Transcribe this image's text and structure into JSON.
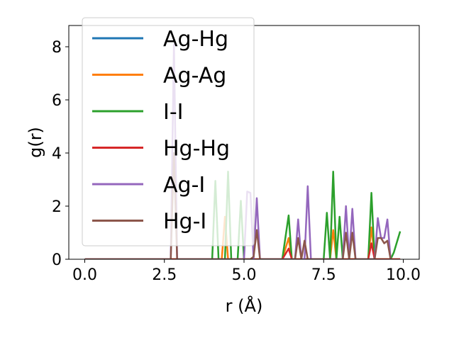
{
  "chart_data": {
    "type": "line",
    "title": "",
    "xlabel": "r (Å)",
    "ylabel": "g(r)",
    "xlim": [
      -0.5,
      10.5
    ],
    "ylim": [
      0,
      8.8
    ],
    "xticks": [
      0.0,
      2.5,
      5.0,
      7.5,
      10.0
    ],
    "xtick_labels": [
      "0.0",
      "2.5",
      "5.0",
      "7.5",
      "10.0"
    ],
    "yticks": [
      0,
      2,
      4,
      6,
      8
    ],
    "ytick_labels": [
      "0",
      "2",
      "4",
      "6",
      "8"
    ],
    "grid": false,
    "legend_position": "upper-left",
    "series": [
      {
        "name": "Ag-Hg",
        "color": "#1f77b4",
        "x": [
          0,
          9.9
        ],
        "y": [
          0,
          0
        ]
      },
      {
        "name": "Ag-Ag",
        "color": "#ff7f0e",
        "x": [
          0,
          4.3,
          4.4,
          4.5,
          4.6,
          6.2,
          6.4,
          6.5,
          7.7,
          7.8,
          7.9,
          8.9,
          9.0,
          9.1,
          9.9
        ],
        "y": [
          0,
          0,
          1.6,
          0,
          0,
          0,
          0.8,
          0,
          0,
          1.1,
          0,
          0,
          1.2,
          0,
          0
        ]
      },
      {
        "name": "I-I",
        "color": "#2ca02c",
        "x": [
          0,
          4.0,
          4.1,
          4.2,
          4.4,
          4.5,
          4.6,
          4.8,
          4.9,
          5.0,
          6.2,
          6.4,
          6.5,
          7.5,
          7.6,
          7.7,
          7.8,
          7.9,
          8.0,
          8.1,
          8.9,
          9.0,
          9.1,
          9.6,
          9.7,
          9.9
        ],
        "y": [
          0,
          0,
          2.95,
          0,
          0,
          3.3,
          0,
          0,
          2.2,
          0,
          0,
          1.65,
          0,
          0,
          1.75,
          0,
          3.3,
          0,
          1.6,
          0,
          0,
          2.5,
          0,
          0,
          0.25,
          1.05
        ]
      },
      {
        "name": "Hg-Hg",
        "color": "#d62728",
        "x": [
          0,
          6.2,
          6.4,
          6.5,
          8.9,
          9.0,
          9.1,
          9.9
        ],
        "y": [
          0,
          0,
          0.4,
          0,
          0,
          0.6,
          0,
          0
        ]
      },
      {
        "name": "Ag-I",
        "color": "#9467bd",
        "x": [
          0,
          2.7,
          2.8,
          2.9,
          5.0,
          5.1,
          5.2,
          5.3,
          5.4,
          5.5,
          6.5,
          6.6,
          6.7,
          6.8,
          6.9,
          7.0,
          7.1,
          8.0,
          8.1,
          8.2,
          8.3,
          8.4,
          8.5,
          9.1,
          9.2,
          9.3,
          9.4,
          9.5,
          9.6
        ],
        "y": [
          0,
          0,
          8.1,
          0,
          0,
          2.55,
          2.5,
          0,
          2.3,
          0,
          0,
          0,
          1.5,
          0,
          0,
          2.75,
          0,
          0,
          0,
          2.0,
          0,
          1.9,
          0,
          0,
          1.55,
          0.8,
          0.8,
          1.5,
          0
        ]
      },
      {
        "name": "Hg-I",
        "color": "#8c564b",
        "x": [
          0,
          2.7,
          2.8,
          2.9,
          5.2,
          5.3,
          5.4,
          5.5,
          6.5,
          6.6,
          6.7,
          6.8,
          6.9,
          7.0,
          8.0,
          8.1,
          8.2,
          8.3,
          8.4,
          8.5,
          9.1,
          9.2,
          9.3,
          9.4,
          9.5,
          9.6
        ],
        "y": [
          0,
          0,
          4.0,
          0,
          0,
          0.1,
          1.1,
          0,
          0,
          0,
          0.8,
          0,
          0.7,
          0,
          0,
          0,
          1.0,
          0,
          1.0,
          0,
          0,
          0.8,
          0.8,
          0.6,
          0.7,
          0
        ]
      }
    ]
  }
}
